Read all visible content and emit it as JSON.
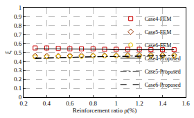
{
  "chart_data": {
    "type": "scatter",
    "x_label": "Reinforcement ratio ρ(%)",
    "y_label": "ξ",
    "x": [
      0.3,
      0.4,
      0.5,
      0.6,
      0.7,
      0.8,
      0.9,
      1.0,
      1.1,
      1.2,
      1.3,
      1.4,
      1.5
    ],
    "series": [
      {
        "name": "Case4-FEM",
        "type": "scatter",
        "marker": "square",
        "color": "#cc0000",
        "values": [
          0.55,
          0.55,
          0.545,
          0.54,
          0.54,
          0.54,
          0.535,
          0.535,
          0.535,
          0.535,
          0.53,
          0.53,
          0.53
        ]
      },
      {
        "name": "Case5-FEM",
        "type": "scatter",
        "marker": "diamond",
        "color": "#993300",
        "values": [
          0.46,
          0.46,
          0.46,
          0.465,
          0.465,
          0.465,
          0.465,
          0.465,
          0.47,
          0.47,
          0.47,
          0.47,
          0.47
        ]
      },
      {
        "name": "Case6-FEM",
        "type": "scatter",
        "marker": "circle",
        "color": "#e6c200",
        "values": [
          0.45,
          0.45,
          0.455,
          0.455,
          0.455,
          0.46,
          0.46,
          0.46,
          0.46,
          0.46,
          0.46,
          0.46,
          0.46
        ]
      },
      {
        "name": "Case4-Proposed",
        "type": "line",
        "line_style": "solid",
        "color": "#000000",
        "values": [
          0.54,
          0.54,
          0.54,
          0.535,
          0.535,
          0.535,
          0.535,
          0.53,
          0.53,
          0.53,
          0.53,
          0.53,
          0.53
        ]
      },
      {
        "name": "Case5-Proposed",
        "type": "line",
        "line_style": "dashdot",
        "color": "#000000",
        "values": [
          0.43,
          0.435,
          0.44,
          0.445,
          0.45,
          0.45,
          0.455,
          0.455,
          0.46,
          0.46,
          0.465,
          0.465,
          0.47
        ]
      },
      {
        "name": "Case6-Proposed",
        "type": "line",
        "line_style": "dash",
        "color": "#000000",
        "values": [
          0.44,
          0.44,
          0.445,
          0.445,
          0.45,
          0.45,
          0.45,
          0.455,
          0.455,
          0.455,
          0.46,
          0.46,
          0.46
        ]
      }
    ],
    "xlim": [
      0.2,
      1.6
    ],
    "xticks": [
      0.2,
      0.4,
      0.6,
      0.8,
      1.0,
      1.2,
      1.4,
      1.6
    ],
    "ylim": [
      0,
      1
    ],
    "yticks": [
      0,
      0.1,
      0.2,
      0.3,
      0.4,
      0.5,
      0.6,
      0.7,
      0.8,
      0.9,
      1
    ],
    "grid": true,
    "legend": "upper right"
  }
}
